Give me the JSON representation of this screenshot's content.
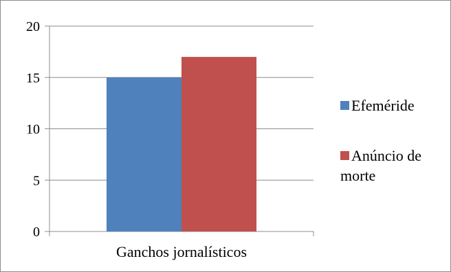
{
  "chart_data": {
    "type": "bar",
    "categories": [
      "Ganchos jornalísticos"
    ],
    "series": [
      {
        "name": "Efeméride",
        "values": [
          15
        ],
        "color": "#4F81BD"
      },
      {
        "name": "Anúncio de morte",
        "values": [
          17
        ],
        "color": "#C0504D"
      }
    ],
    "title": "",
    "xlabel": "",
    "ylabel": "",
    "ylim": [
      0,
      20
    ],
    "yticks": [
      0,
      5,
      10,
      15,
      20
    ],
    "grid": true,
    "legend_position": "right"
  }
}
